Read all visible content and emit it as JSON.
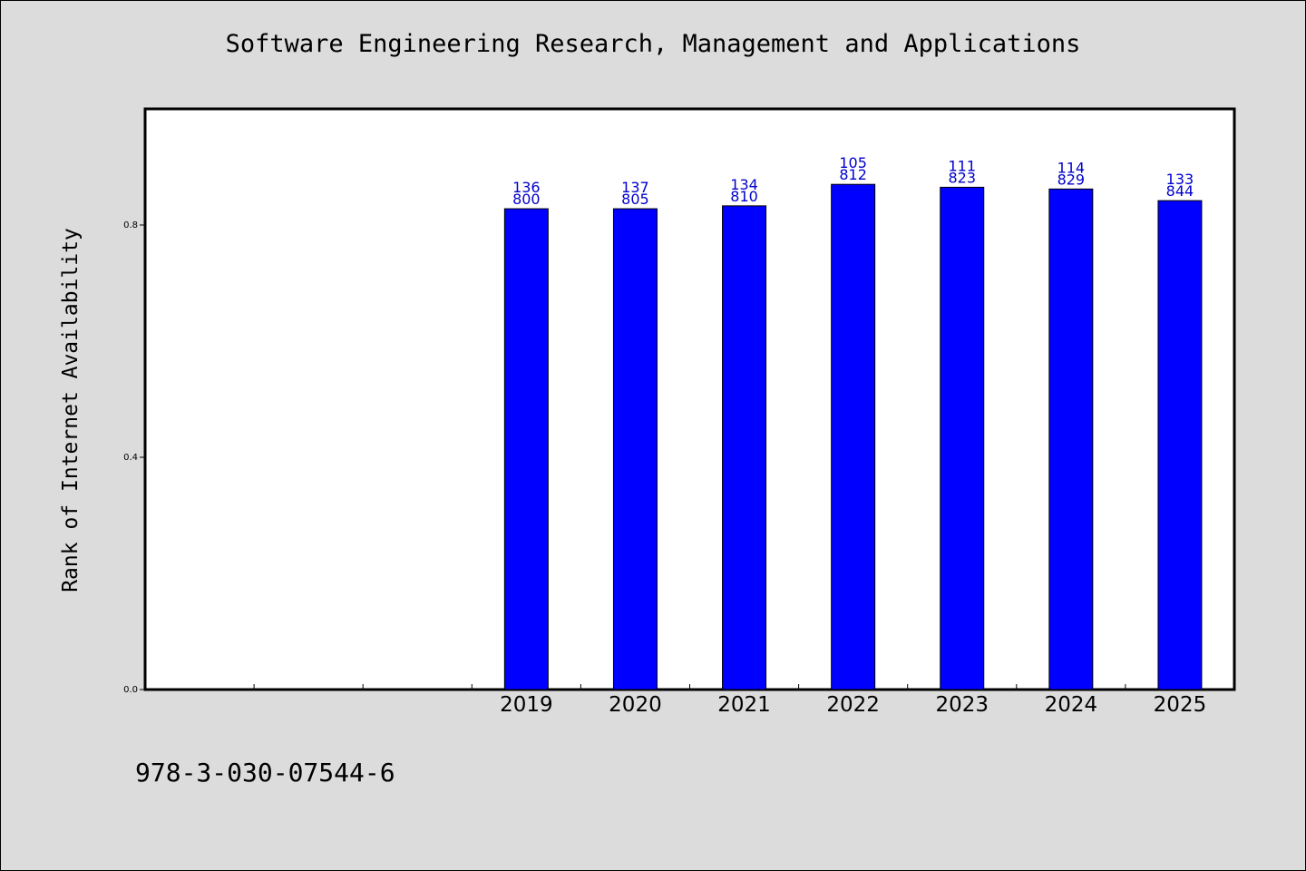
{
  "chart_data": {
    "type": "bar",
    "title": "Software Engineering Research, Management and Applications",
    "ylabel": "Rank of Internet Availability",
    "xlabel": "",
    "categories": [
      "",
      "",
      "",
      "2019",
      "2020",
      "2021",
      "2022",
      "2023",
      "2024",
      "2025"
    ],
    "values": [
      null,
      null,
      null,
      0.828,
      0.828,
      0.833,
      0.87,
      0.865,
      0.862,
      0.842
    ],
    "bar_labels": [
      null,
      null,
      null,
      [
        "136",
        "800"
      ],
      [
        "137",
        "805"
      ],
      [
        "134",
        "810"
      ],
      [
        "105",
        "812"
      ],
      [
        "111",
        "823"
      ],
      [
        "114",
        "829"
      ],
      [
        "133",
        "844"
      ]
    ],
    "yticks": [
      "0.0",
      "0.4",
      "0.8"
    ],
    "ylim": [
      0,
      1.0
    ],
    "grid": false,
    "legend": "none",
    "colors": {
      "bar": "#0000ff",
      "bar_label": "#0000cc",
      "background": "#dcdcdc",
      "plot_background": "#ffffff"
    }
  },
  "footer": {
    "isbn": "978-3-030-07544-6"
  }
}
